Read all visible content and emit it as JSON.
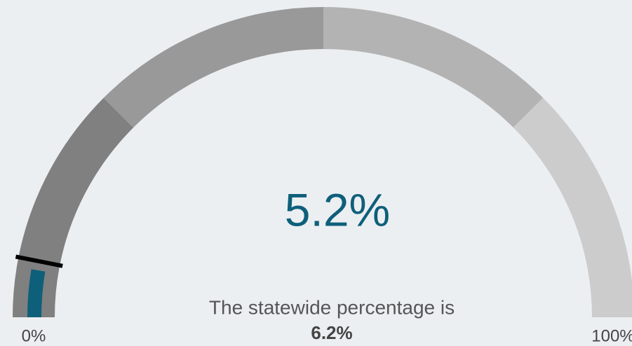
{
  "chart_data": {
    "type": "gauge",
    "value": 5.2,
    "value_label": "5.2%",
    "color": "#0e5f7a",
    "ylim": [
      0,
      100
    ],
    "yticks": [
      {
        "value": 0,
        "label": "0%"
      },
      {
        "value": 100,
        "label": "100%"
      }
    ],
    "bands": [
      {
        "from": 0,
        "to": 25,
        "color": "#808080"
      },
      {
        "from": 25,
        "to": 50,
        "color": "#999999"
      },
      {
        "from": 50,
        "to": 75,
        "color": "#b3b3b3"
      },
      {
        "from": 75,
        "to": 100,
        "color": "#cccccc"
      }
    ],
    "reference_text": "The statewide percentage is",
    "reference": 6.2,
    "reference_label": "6.2%",
    "reference_color": "#000000"
  }
}
